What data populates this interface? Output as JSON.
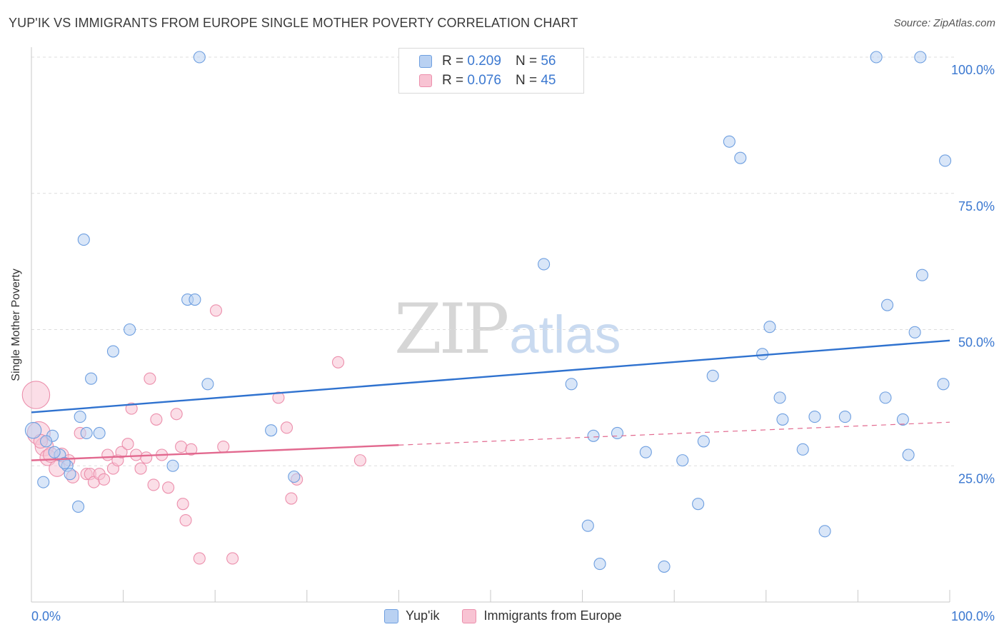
{
  "header": {
    "title": "YUP'IK VS IMMIGRANTS FROM EUROPE SINGLE MOTHER POVERTY CORRELATION CHART",
    "source": "Source: ZipAtlas.com"
  },
  "watermark": {
    "zip": "ZIP",
    "atlas": "atlas"
  },
  "legend": {
    "rows": [
      {
        "r_label": "R =",
        "r_value": "0.209",
        "n_label": "N =",
        "n_value": "56"
      },
      {
        "r_label": "R =",
        "r_value": "0.076",
        "n_label": "N =",
        "n_value": "45"
      }
    ],
    "bottom": [
      "Yup'ik",
      "Immigrants from Europe"
    ]
  },
  "colors": {
    "blue_fill": "#b9d1f2",
    "blue_stroke": "#6e9fe0",
    "blue_line": "#2f72cf",
    "pink_fill": "#f8c3d3",
    "pink_stroke": "#ec8fac",
    "pink_line": "#e2698f",
    "axis_text": "#3b78d0",
    "grid": "#dddddd"
  },
  "chart_data": {
    "type": "scatter",
    "title": "YUP'IK VS IMMIGRANTS FROM EUROPE SINGLE MOTHER POVERTY CORRELATION CHART",
    "xlabel": "",
    "ylabel": "Single Mother Poverty",
    "xlim": [
      0,
      100
    ],
    "ylim": [
      0,
      103
    ],
    "x_ticks_labels": [
      "0.0%",
      "100.0%"
    ],
    "y_ticks": [
      25,
      50,
      75,
      100
    ],
    "y_tick_labels": [
      "25.0%",
      "50.0%",
      "75.0%",
      "100.0%"
    ],
    "grid": true,
    "legend_position": "top-center",
    "series": [
      {
        "name": "Yup'ik",
        "r": 0.209,
        "n": 56,
        "trend": {
          "x": [
            0,
            100
          ],
          "y": [
            34.8,
            48.0
          ],
          "dashed_from": null
        },
        "points": [
          {
            "x": 18.3,
            "y": 100,
            "s": 1
          },
          {
            "x": 92.0,
            "y": 100,
            "s": 1
          },
          {
            "x": 96.8,
            "y": 100,
            "s": 1
          },
          {
            "x": 76.0,
            "y": 84.5,
            "s": 1
          },
          {
            "x": 77.2,
            "y": 81.5,
            "s": 1
          },
          {
            "x": 99.5,
            "y": 81.0,
            "s": 1
          },
          {
            "x": 5.7,
            "y": 66.5,
            "s": 1
          },
          {
            "x": 55.8,
            "y": 62.0,
            "s": 1
          },
          {
            "x": 97.0,
            "y": 60.0,
            "s": 1
          },
          {
            "x": 17.0,
            "y": 55.5,
            "s": 1
          },
          {
            "x": 17.8,
            "y": 55.5,
            "s": 1
          },
          {
            "x": 93.2,
            "y": 54.5,
            "s": 1
          },
          {
            "x": 10.7,
            "y": 50.0,
            "s": 1
          },
          {
            "x": 80.4,
            "y": 50.5,
            "s": 1
          },
          {
            "x": 96.2,
            "y": 49.5,
            "s": 1
          },
          {
            "x": 8.9,
            "y": 46.0,
            "s": 1
          },
          {
            "x": 79.6,
            "y": 45.5,
            "s": 1
          },
          {
            "x": 6.5,
            "y": 41.0,
            "s": 1
          },
          {
            "x": 19.2,
            "y": 40.0,
            "s": 1
          },
          {
            "x": 58.8,
            "y": 40.0,
            "s": 1
          },
          {
            "x": 74.2,
            "y": 41.5,
            "s": 1
          },
          {
            "x": 99.3,
            "y": 40.0,
            "s": 1
          },
          {
            "x": 81.5,
            "y": 37.5,
            "s": 1
          },
          {
            "x": 93.0,
            "y": 37.5,
            "s": 1
          },
          {
            "x": 5.3,
            "y": 34.0,
            "s": 1
          },
          {
            "x": 81.8,
            "y": 33.5,
            "s": 1
          },
          {
            "x": 85.3,
            "y": 34.0,
            "s": 1
          },
          {
            "x": 88.6,
            "y": 34.0,
            "s": 1
          },
          {
            "x": 94.9,
            "y": 33.5,
            "s": 1
          },
          {
            "x": 0.2,
            "y": 31.5,
            "s": 1.4
          },
          {
            "x": 2.3,
            "y": 30.5,
            "s": 1
          },
          {
            "x": 7.4,
            "y": 31.0,
            "s": 1
          },
          {
            "x": 26.1,
            "y": 31.5,
            "s": 1
          },
          {
            "x": 61.2,
            "y": 30.5,
            "s": 1
          },
          {
            "x": 63.8,
            "y": 31.0,
            "s": 1
          },
          {
            "x": 73.2,
            "y": 29.5,
            "s": 1
          },
          {
            "x": 1.6,
            "y": 29.5,
            "s": 1
          },
          {
            "x": 3.1,
            "y": 27.0,
            "s": 1
          },
          {
            "x": 66.9,
            "y": 27.5,
            "s": 1
          },
          {
            "x": 84.0,
            "y": 28.0,
            "s": 1
          },
          {
            "x": 95.5,
            "y": 27.0,
            "s": 1
          },
          {
            "x": 3.9,
            "y": 25.0,
            "s": 1
          },
          {
            "x": 15.4,
            "y": 25.0,
            "s": 1
          },
          {
            "x": 70.9,
            "y": 26.0,
            "s": 1
          },
          {
            "x": 4.2,
            "y": 23.5,
            "s": 1
          },
          {
            "x": 28.6,
            "y": 23.0,
            "s": 1
          },
          {
            "x": 1.3,
            "y": 22.0,
            "s": 1
          },
          {
            "x": 5.1,
            "y": 17.5,
            "s": 1
          },
          {
            "x": 72.6,
            "y": 18.0,
            "s": 1
          },
          {
            "x": 60.6,
            "y": 14.0,
            "s": 1
          },
          {
            "x": 86.4,
            "y": 13.0,
            "s": 1
          },
          {
            "x": 61.9,
            "y": 7.0,
            "s": 1
          },
          {
            "x": 68.9,
            "y": 6.5,
            "s": 1
          },
          {
            "x": 2.5,
            "y": 27.5,
            "s": 1
          },
          {
            "x": 3.6,
            "y": 25.5,
            "s": 1
          },
          {
            "x": 6.0,
            "y": 31.0,
            "s": 1
          }
        ]
      },
      {
        "name": "Immigrants from Europe",
        "r": 0.076,
        "n": 45,
        "trend": {
          "x": [
            0,
            100
          ],
          "y": [
            26.0,
            33.0
          ],
          "dashed_from": 40
        },
        "points": [
          {
            "x": 0.5,
            "y": 38.0,
            "s": 2.4
          },
          {
            "x": 0.8,
            "y": 31.0,
            "s": 2.0
          },
          {
            "x": 1.4,
            "y": 28.5,
            "s": 1.6
          },
          {
            "x": 1.8,
            "y": 26.5,
            "s": 1.4
          },
          {
            "x": 2.8,
            "y": 24.5,
            "s": 1.4
          },
          {
            "x": 3.3,
            "y": 27.0,
            "s": 1.2
          },
          {
            "x": 4.5,
            "y": 23.0,
            "s": 1.1
          },
          {
            "x": 5.3,
            "y": 31.0,
            "s": 1
          },
          {
            "x": 6.0,
            "y": 23.5,
            "s": 1
          },
          {
            "x": 6.4,
            "y": 23.5,
            "s": 1
          },
          {
            "x": 6.8,
            "y": 22.0,
            "s": 1
          },
          {
            "x": 7.4,
            "y": 23.5,
            "s": 1
          },
          {
            "x": 7.9,
            "y": 22.5,
            "s": 1
          },
          {
            "x": 8.3,
            "y": 27.0,
            "s": 1
          },
          {
            "x": 8.9,
            "y": 24.5,
            "s": 1
          },
          {
            "x": 9.4,
            "y": 26.0,
            "s": 1
          },
          {
            "x": 9.8,
            "y": 27.5,
            "s": 1
          },
          {
            "x": 10.5,
            "y": 29.0,
            "s": 1
          },
          {
            "x": 10.9,
            "y": 35.5,
            "s": 1
          },
          {
            "x": 11.4,
            "y": 27.0,
            "s": 1
          },
          {
            "x": 11.9,
            "y": 24.5,
            "s": 1
          },
          {
            "x": 12.5,
            "y": 26.5,
            "s": 1
          },
          {
            "x": 12.9,
            "y": 41.0,
            "s": 1
          },
          {
            "x": 13.3,
            "y": 21.5,
            "s": 1
          },
          {
            "x": 13.6,
            "y": 33.5,
            "s": 1
          },
          {
            "x": 14.2,
            "y": 27.0,
            "s": 1
          },
          {
            "x": 14.9,
            "y": 21.0,
            "s": 1
          },
          {
            "x": 15.8,
            "y": 34.5,
            "s": 1
          },
          {
            "x": 16.3,
            "y": 28.5,
            "s": 1
          },
          {
            "x": 16.5,
            "y": 18.0,
            "s": 1
          },
          {
            "x": 16.8,
            "y": 15.0,
            "s": 1
          },
          {
            "x": 17.4,
            "y": 28.0,
            "s": 1
          },
          {
            "x": 18.3,
            "y": 8.0,
            "s": 1
          },
          {
            "x": 20.1,
            "y": 53.5,
            "s": 1
          },
          {
            "x": 20.9,
            "y": 28.5,
            "s": 1
          },
          {
            "x": 21.9,
            "y": 8.0,
            "s": 1
          },
          {
            "x": 26.9,
            "y": 37.5,
            "s": 1
          },
          {
            "x": 27.8,
            "y": 32.0,
            "s": 1
          },
          {
            "x": 28.3,
            "y": 19.0,
            "s": 1
          },
          {
            "x": 28.9,
            "y": 22.5,
            "s": 1
          },
          {
            "x": 33.4,
            "y": 44.0,
            "s": 1
          },
          {
            "x": 35.8,
            "y": 26.0,
            "s": 1
          },
          {
            "x": 2.1,
            "y": 27.0,
            "s": 1.3
          },
          {
            "x": 4.1,
            "y": 26.0,
            "s": 1
          },
          {
            "x": 1.0,
            "y": 29.5,
            "s": 1.2
          }
        ]
      }
    ]
  }
}
